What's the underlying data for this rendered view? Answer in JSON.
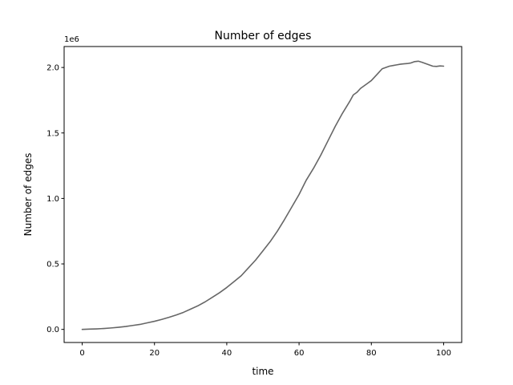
{
  "chart_data": {
    "type": "line",
    "title": "Number of edges",
    "xlabel": "time",
    "ylabel": "Number of edges",
    "offset_text": "1e6",
    "xlim": [
      -5,
      105
    ],
    "ylim": [
      -0.1,
      2.16
    ],
    "x_ticks": [
      0,
      20,
      40,
      60,
      80,
      100
    ],
    "x_tick_labels": [
      "0",
      "20",
      "40",
      "60",
      "80",
      "100"
    ],
    "y_ticks": [
      0.0,
      0.5,
      1.0,
      1.5,
      2.0
    ],
    "y_tick_labels": [
      "0.0",
      "0.5",
      "1.0",
      "1.5",
      "2.0"
    ],
    "grid": false,
    "legend": "none",
    "series": [
      {
        "color": "#666666",
        "x": [
          0,
          2,
          4,
          6,
          8,
          10,
          12,
          14,
          16,
          18,
          20,
          22,
          24,
          26,
          28,
          30,
          32,
          34,
          36,
          38,
          40,
          42,
          44,
          46,
          48,
          50,
          52,
          54,
          56,
          58,
          60,
          62,
          64,
          66,
          68,
          70,
          72,
          74,
          75,
          76,
          77,
          78,
          79,
          80,
          81,
          82,
          83,
          84,
          85,
          86,
          87,
          88,
          89,
          90,
          91,
          92,
          93,
          94,
          95,
          96,
          97,
          98,
          99,
          100
        ],
        "y": [
          0.0,
          0.002,
          0.004,
          0.007,
          0.011,
          0.016,
          0.022,
          0.03,
          0.038,
          0.05,
          0.062,
          0.076,
          0.092,
          0.11,
          0.13,
          0.155,
          0.18,
          0.21,
          0.245,
          0.28,
          0.32,
          0.365,
          0.41,
          0.47,
          0.53,
          0.6,
          0.67,
          0.75,
          0.84,
          0.935,
          1.03,
          1.14,
          1.23,
          1.33,
          1.44,
          1.55,
          1.65,
          1.74,
          1.79,
          1.81,
          1.84,
          1.86,
          1.88,
          1.9,
          1.93,
          1.96,
          1.99,
          2.0,
          2.01,
          2.015,
          2.02,
          2.025,
          2.028,
          2.03,
          2.035,
          2.045,
          2.048,
          2.04,
          2.03,
          2.02,
          2.01,
          2.008,
          2.012,
          2.01
        ]
      }
    ]
  }
}
